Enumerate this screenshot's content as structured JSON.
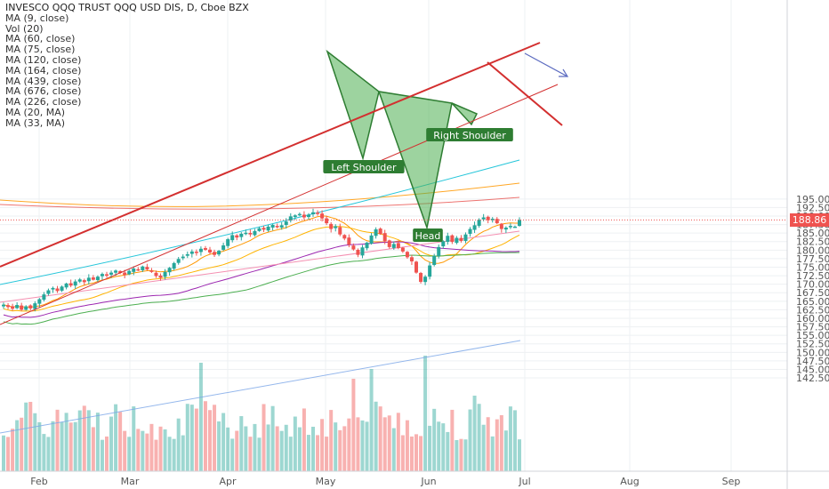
{
  "header": {
    "title": "INVESCO QQQ TRUST QQQ USD DIS, D, Cboe BZX",
    "indicators": [
      "MA (9, close)",
      "Vol (20)",
      "MA (60, close)",
      "MA (75, close)",
      "MA (120, close)",
      "MA (164, close)",
      "MA (439, close)",
      "MA (676, close)",
      "MA (226, close)",
      "MA (20, MA)",
      "MA (33, MA)"
    ]
  },
  "last_price_label": "188.86",
  "colors": {
    "up": "#26a69a",
    "down": "#ef5350",
    "trend": "#d32f2f",
    "pattern_fill": "#4caf50"
  },
  "chart_data": {
    "type": "candlestick",
    "title": "INVESCO QQQ TRUST QQQ USD DIS, D, Cboe BZX",
    "y_axis": {
      "ticks": [
        "195.00",
        "192.50",
        "190.00",
        "187.50",
        "185.00",
        "182.50",
        "180.00",
        "177.50",
        "175.00",
        "172.50",
        "170.00",
        "167.50",
        "165.00",
        "162.50",
        "160.00",
        "157.50",
        "155.00",
        "152.50",
        "150.00",
        "147.50",
        "145.00",
        "142.50"
      ],
      "ylim": [
        141.5,
        197.0
      ]
    },
    "x_axis": {
      "ticks": [
        "Feb",
        "Mar",
        "Apr",
        "May",
        "Jun",
        "Jul",
        "Aug",
        "Sep"
      ]
    },
    "last_price": 188.86,
    "closes": [
      164.0,
      163.3,
      162.8,
      163.9,
      162.5,
      163.5,
      162.9,
      164.4,
      165.6,
      167.0,
      168.2,
      168.9,
      168.0,
      169.3,
      170.2,
      169.6,
      170.8,
      171.4,
      170.6,
      171.9,
      171.3,
      172.2,
      173.0,
      172.5,
      173.4,
      174.0,
      173.3,
      172.7,
      173.9,
      174.6,
      174.1,
      175.2,
      174.3,
      173.6,
      172.4,
      171.9,
      173.6,
      174.8,
      176.2,
      177.4,
      178.1,
      178.8,
      179.6,
      179.2,
      180.4,
      180.1,
      179.3,
      178.6,
      179.8,
      181.4,
      183.2,
      184.4,
      183.7,
      184.8,
      185.1,
      184.6,
      185.6,
      186.4,
      186.0,
      186.9,
      187.4,
      186.8,
      187.3,
      188.4,
      189.9,
      190.2,
      190.6,
      189.6,
      190.4,
      191.1,
      190.8,
      189.3,
      187.9,
      186.2,
      187.0,
      184.6,
      183.4,
      181.6,
      180.2,
      178.6,
      180.8,
      182.2,
      184.3,
      186.1,
      184.7,
      182.6,
      180.9,
      181.8,
      180.6,
      179.6,
      177.9,
      176.7,
      173.4,
      170.7,
      172.2,
      175.5,
      178.3,
      180.9,
      182.6,
      184.2,
      182.4,
      183.6,
      182.7,
      184.6,
      186.2,
      187.3,
      188.9,
      189.6,
      188.8,
      189.2,
      187.9,
      186.2,
      186.6,
      187.1,
      186.9,
      188.86
    ],
    "annotations": [
      "Left Shoulder",
      "Head",
      "Right Shoulder"
    ],
    "volume_overlay": true
  }
}
